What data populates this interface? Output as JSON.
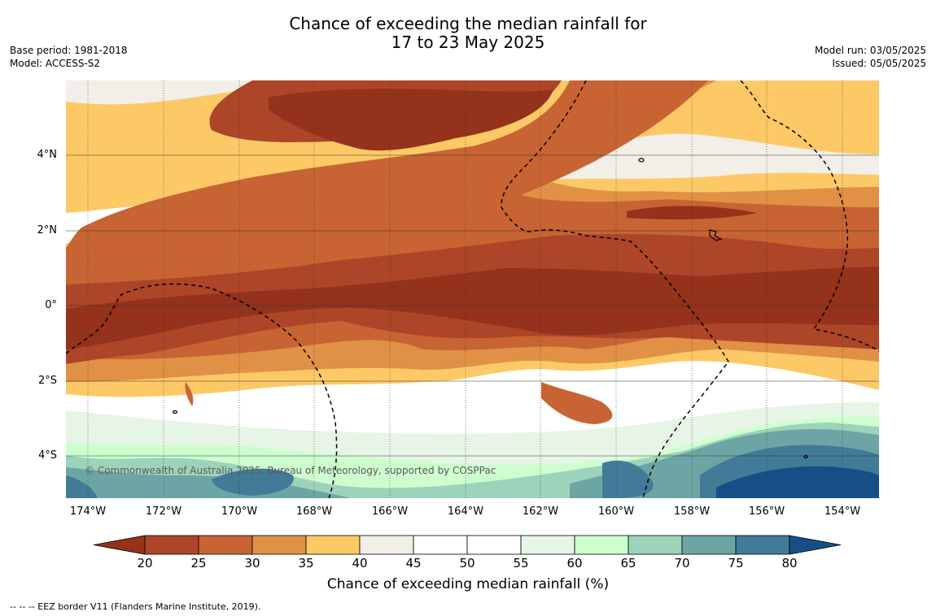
{
  "title_line1": "Chance of exceeding the median rainfall for",
  "title_line2": "17 to 23 May 2025",
  "base_period": "Base period: 1981-2018",
  "model": "Model: ACCESS-S2",
  "model_run": "Model run: 03/05/2025",
  "issued": "Issued: 05/05/2025",
  "lat_labels": [
    "4°N",
    "2°N",
    "0°",
    "2°S",
    "4°S"
  ],
  "lon_labels": [
    "174°W",
    "172°W",
    "170°W",
    "168°W",
    "166°W",
    "164°W",
    "162°W",
    "160°W",
    "158°W",
    "156°W",
    "154°W"
  ],
  "credit": "© Commonwealth of Australia 2025, Bureau of Meteorology, supported by COSPPac",
  "colorbar": {
    "ticks": [
      "20",
      "25",
      "30",
      "35",
      "40",
      "45",
      "50",
      "55",
      "60",
      "65",
      "70",
      "75",
      "80"
    ],
    "colors": {
      "below_20": "#94321c",
      "20_25": "#ad4528",
      "25_30": "#c86433",
      "30_35": "#e09146",
      "35_40": "#fdc966",
      "40_45": "#f2eee8",
      "45_50": "#ffffff",
      "50_55": "#ffffff",
      "55_60": "#e7f5e6",
      "60_65": "#cdffce",
      "65_70": "#9dd3bb",
      "70_75": "#6da5a5",
      "75_80": "#417b98",
      "above_80": "#164f88"
    },
    "label": "Chance of exceeding median rainfall (%)"
  },
  "footer": "--  --  -- EEZ border V11 (Flanders Marine Institute, 2019)."
}
